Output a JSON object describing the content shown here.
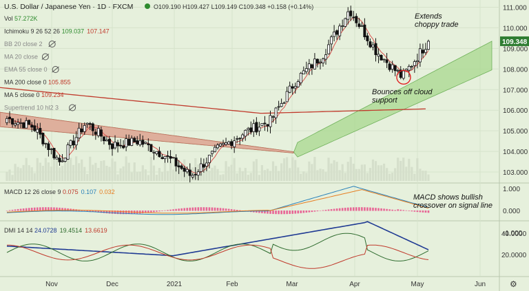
{
  "header": {
    "title": "U.S. Dollar / Japanese Yen · 1D · FXCM",
    "ohlc": "O109.190 H109.427 L109.149 C109.348 +0.158 (+0.14%)"
  },
  "legend": [
    {
      "label": "Vol",
      "values": [
        "57.272K"
      ],
      "colors": [
        "#2e8b2e"
      ],
      "hidden": false
    },
    {
      "label": "Ichimoku 9 26 52 26",
      "values": [
        "109.037",
        "107.147"
      ],
      "colors": [
        "#2e8b2e",
        "#c0392b"
      ],
      "hidden": false
    },
    {
      "label": "BB 20 close 2",
      "values": [],
      "colors": [],
      "hidden": true
    },
    {
      "label": "MA 20 close",
      "values": [],
      "colors": [],
      "hidden": true
    },
    {
      "label": "EMA 55 close 0",
      "values": [],
      "colors": [],
      "hidden": true
    },
    {
      "label": "MA 200 close 0",
      "values": [
        "105.855"
      ],
      "colors": [
        "#c0392b"
      ],
      "hidden": false
    },
    {
      "label": "MA 5 close 0",
      "values": [
        "109.234"
      ],
      "colors": [
        "#c0392b"
      ],
      "hidden": false
    },
    {
      "label": "Supertrend 10 hl2 3",
      "values": [],
      "colors": [],
      "hidden": true
    }
  ],
  "macd_legend": {
    "label": "MACD 12 26 close 9",
    "values": [
      "0.075",
      "0.107",
      "0.032"
    ],
    "colors": [
      "#c0392b",
      "#2980b9",
      "#e67e22"
    ]
  },
  "dmi_legend": {
    "label": "DMI 14 14",
    "values": [
      "24.0728",
      "19.4514",
      "13.6619"
    ],
    "colors": [
      "#1f3a93",
      "#2e6b2e",
      "#c0392b"
    ]
  },
  "price_badge": "109.348",
  "annotations": {
    "top": [
      "Extends",
      "choppy trade"
    ],
    "cloud": [
      "Bounces off cloud",
      "support"
    ],
    "macd": [
      "MACD shows bullish",
      "crossover on signal line"
    ]
  },
  "x_axis": [
    "Nov",
    "Dec",
    "2021",
    "Feb",
    "Mar",
    "Apr",
    "May",
    "Jun"
  ],
  "chart_data": [
    {
      "type": "candlestick",
      "title": "U.S. Dollar / Japanese Yen · 1D · FXCM",
      "y_ticks": [
        103.0,
        104.0,
        105.0,
        106.0,
        107.0,
        108.0,
        109.0,
        110.0,
        111.0
      ],
      "ylim": [
        102.5,
        111.35
      ],
      "series": [
        {
          "name": "Price",
          "key_points": [
            [
              "Oct",
              105.6
            ],
            [
              "Oct",
              105.2
            ],
            [
              "Nov",
              103.5
            ],
            [
              "Nov",
              105.4
            ],
            [
              "Nov",
              104.3
            ],
            [
              "Dec",
              104.5
            ],
            [
              "Dec",
              103.8
            ],
            [
              "Jan",
              102.8
            ],
            [
              "Jan",
              104.1
            ],
            [
              "Feb",
              104.9
            ],
            [
              "Feb",
              105.5
            ],
            [
              "Mar",
              107.5
            ],
            [
              "Mar",
              108.7
            ],
            [
              "Apr",
              110.9
            ],
            [
              "Apr",
              108.9
            ],
            [
              "Apr",
              107.6
            ],
            [
              "May",
              109.348
            ]
          ]
        },
        {
          "name": "MA 200",
          "value": 105.855
        },
        {
          "name": "MA 5",
          "value": 109.234
        }
      ]
    },
    {
      "type": "line",
      "title": "MACD 12 26 close 9",
      "y_ticks": [
        1.0,
        0.0,
        -1.0
      ],
      "series": [
        {
          "name": "MACD",
          "last": 0.107
        },
        {
          "name": "Signal",
          "last": 0.075
        },
        {
          "name": "Histogram",
          "last": 0.032
        }
      ]
    },
    {
      "type": "line",
      "title": "DMI 14 14",
      "y_ticks": [
        40.0,
        20.0
      ],
      "series": [
        {
          "name": "ADX",
          "last": 24.0728
        },
        {
          "name": "+DI",
          "last": 19.4514
        },
        {
          "name": "-DI",
          "last": 13.6619
        }
      ]
    }
  ]
}
